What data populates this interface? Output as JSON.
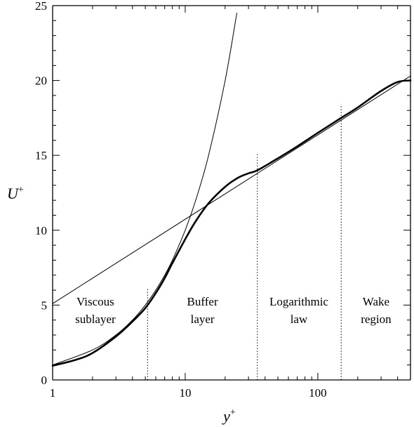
{
  "chart_data": {
    "type": "line",
    "xscale": "log",
    "xlim": [
      1,
      500
    ],
    "ylim": [
      0,
      25
    ],
    "xlabel": "y",
    "xlabel_sup": "+",
    "ylabel": "U",
    "ylabel_sup": "+",
    "x_ticks": [
      {
        "value": 1,
        "label": "1"
      },
      {
        "value": 10,
        "label": "10"
      },
      {
        "value": 100,
        "label": "100"
      }
    ],
    "y_ticks": [
      {
        "value": 0,
        "label": "0"
      },
      {
        "value": 5,
        "label": "5"
      },
      {
        "value": 10,
        "label": "10"
      },
      {
        "value": 15,
        "label": "15"
      },
      {
        "value": 20,
        "label": "20"
      },
      {
        "value": 25,
        "label": "25"
      }
    ],
    "grid": false,
    "series": [
      {
        "style": "thick",
        "x": [
          1,
          1.5,
          2,
          3,
          4,
          5,
          6,
          7,
          8,
          10,
          12,
          15,
          20,
          25,
          30,
          35,
          50,
          70,
          100,
          150,
          200,
          300,
          400,
          500
        ],
        "y": [
          0.95,
          1.35,
          1.8,
          2.9,
          3.9,
          4.8,
          5.8,
          6.8,
          7.8,
          9.4,
          10.6,
          11.8,
          12.9,
          13.5,
          13.8,
          14.0,
          14.8,
          15.6,
          16.5,
          17.5,
          18.2,
          19.3,
          19.9,
          20.0
        ]
      },
      {
        "style": "thin",
        "x": [
          1,
          2,
          3,
          4,
          5,
          6,
          7,
          8,
          10,
          12,
          15,
          20,
          24.5
        ],
        "y": [
          1,
          2,
          3,
          4,
          5,
          6,
          7,
          8,
          10,
          12,
          15,
          20,
          24.5
        ]
      },
      {
        "style": "thin",
        "x": [
          1,
          500
        ],
        "y": [
          5.1,
          20.3
        ]
      }
    ],
    "dividers": [
      {
        "x": 5.2,
        "y_top": 6.1
      },
      {
        "x": 35,
        "y_top": 15.1
      },
      {
        "x": 150,
        "y_top": 18.4
      }
    ],
    "region_labels": [
      {
        "lines": [
          "Viscous",
          "sublayer"
        ],
        "x_center": 2.1
      },
      {
        "lines": [
          "Buffer",
          "layer"
        ],
        "x_center": 13.5
      },
      {
        "lines": [
          "Logarithmic",
          "law"
        ],
        "x_center": 72
      },
      {
        "lines": [
          "Wake",
          "region"
        ],
        "x_center": 275
      }
    ]
  }
}
